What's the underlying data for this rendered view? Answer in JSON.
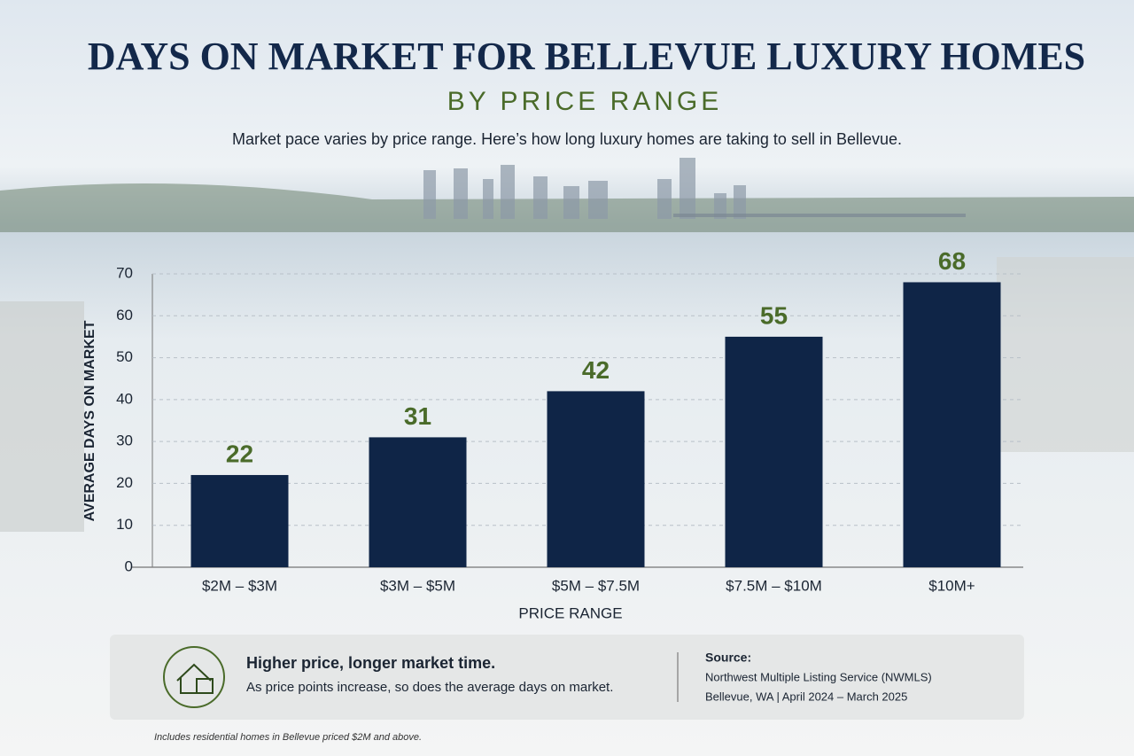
{
  "chart_data": {
    "type": "bar",
    "title": "DAYS ON MARKET FOR BELLEVUE LUXURY HOMES",
    "subtitle": "BY PRICE RANGE",
    "description": "Market pace varies by price range. Here’s how long luxury homes are taking to sell in Bellevue.",
    "x_label": "PRICE RANGE",
    "y_label": "AVERAGE DAYS ON MARKET",
    "categories": [
      "$2M – $3M",
      "$3M – $5M",
      "$5M – $7.5M",
      "$7.5M – $10M",
      "$10M+"
    ],
    "values": [
      22,
      31,
      42,
      55,
      68
    ],
    "color": "#0f2547",
    "label_color": "#4a6b2a",
    "ylim": [
      0,
      70
    ],
    "yticks": [
      0,
      10,
      20,
      30,
      40,
      50,
      60,
      70
    ],
    "grid": true
  },
  "callout": {
    "heading": "Higher price, longer market time.",
    "text": "As price points increase, so does the average days on market.",
    "source_label": "Source:",
    "source_lines": [
      "Northwest Multiple Listing Service (NWMLS)",
      "Bellevue, WA  |  April 2024 – March 2025"
    ]
  },
  "footnote": "Includes residential homes in Bellevue priced $2M and above."
}
